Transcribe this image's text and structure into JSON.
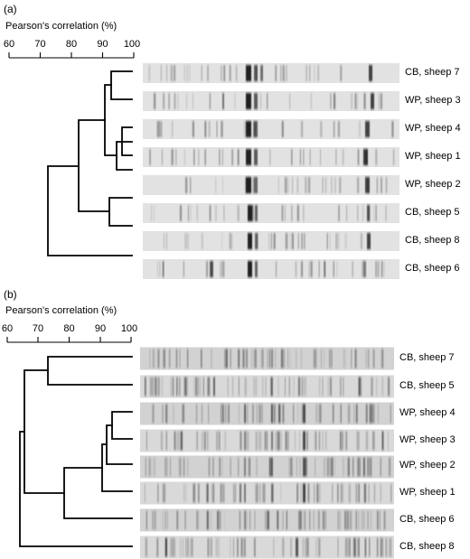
{
  "panel_a": {
    "letter": "(a)",
    "scale_title": "Pearson's correlation (%)",
    "scale_ticks": [
      "60",
      "70",
      "80",
      "90",
      "100"
    ],
    "lanes": [
      "CB, sheep 7",
      "WP, sheep 3",
      "WP, sheep 4",
      "WP, sheep 1",
      "WP, sheep 2",
      "CB, sheep 5",
      "CB, sheep 8",
      "CB, sheep 6"
    ]
  },
  "panel_b": {
    "letter": "(b)",
    "scale_title": "Pearson's correlation (%)",
    "scale_ticks": [
      "60",
      "70",
      "80",
      "90",
      "100"
    ],
    "lanes": [
      "CB, sheep 7",
      "CB, sheep 5",
      "WP, sheep 4",
      "WP, sheep 3",
      "WP, sheep 2",
      "WP, sheep 1",
      "CB, sheep 6",
      "CB, sheep 8"
    ]
  }
}
